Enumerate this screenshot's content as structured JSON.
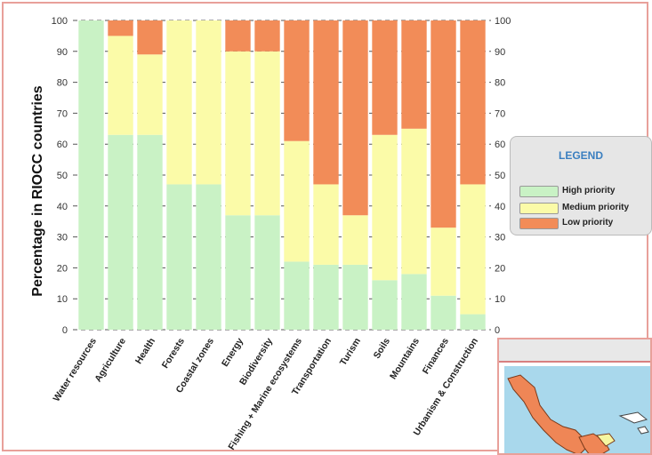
{
  "chart_data": {
    "type": "bar",
    "stacked": true,
    "ylabel": "Percentage in RIOCC countries",
    "ylim": [
      0,
      100
    ],
    "yticks": [
      0,
      10,
      20,
      30,
      40,
      50,
      60,
      70,
      80,
      90,
      100
    ],
    "grid": true,
    "secondary_y_axis": true,
    "categories": [
      "Water resources",
      "Agriculture",
      "Health",
      "Forests",
      "Coastal zones",
      "Energy",
      "Biodiversity",
      "Fishing + Marine ecosystems",
      "Transportation",
      "Turism",
      "Soils",
      "Mountains",
      "Finances",
      "Urbanism & Construction"
    ],
    "series": [
      {
        "name": "High priority",
        "color": "#c9f2c5",
        "values": [
          100,
          63,
          63,
          47,
          47,
          37,
          37,
          22,
          21,
          21,
          16,
          18,
          11,
          5
        ]
      },
      {
        "name": "Medium priority",
        "color": "#fbfba8",
        "values": [
          0,
          32,
          26,
          53,
          53,
          53,
          53,
          39,
          26,
          16,
          47,
          47,
          22,
          42
        ]
      },
      {
        "name": "Low priority",
        "color": "#f28c58",
        "values": [
          0,
          5,
          11,
          0,
          0,
          10,
          10,
          39,
          53,
          63,
          37,
          35,
          67,
          53
        ]
      }
    ],
    "legend": {
      "title": "LEGEND",
      "placement": "right"
    }
  }
}
